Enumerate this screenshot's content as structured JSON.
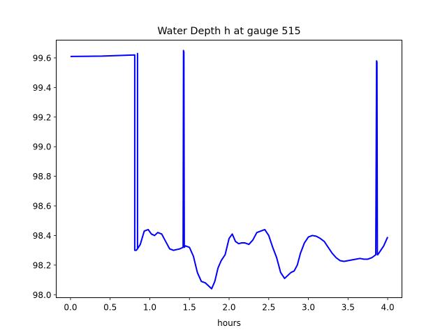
{
  "chart_data": {
    "type": "line",
    "title": "Water Depth h at gauge 515",
    "xlabel": "hours",
    "ylabel": "",
    "xlim": [
      -0.18,
      4.18
    ],
    "ylim": [
      97.98,
      99.72
    ],
    "xticks": [
      0.0,
      0.5,
      1.0,
      1.5,
      2.0,
      2.5,
      3.0,
      3.5,
      4.0
    ],
    "xtick_labels": [
      "0.0",
      "0.5",
      "1.0",
      "1.5",
      "2.0",
      "2.5",
      "3.0",
      "3.5",
      "4.0"
    ],
    "yticks": [
      98.0,
      98.2,
      98.4,
      98.6,
      98.8,
      99.0,
      99.2,
      99.4,
      99.6
    ],
    "ytick_labels": [
      "98.0",
      "98.2",
      "98.4",
      "98.6",
      "98.8",
      "99.0",
      "99.2",
      "99.4",
      "99.6"
    ],
    "grid": false,
    "series": [
      {
        "color": "#0000ff",
        "x": [
          0.0,
          0.4,
          0.81,
          0.81,
          0.83,
          0.845,
          0.845,
          0.845,
          0.88,
          0.93,
          0.98,
          1.02,
          1.06,
          1.1,
          1.15,
          1.2,
          1.25,
          1.3,
          1.34,
          1.38,
          1.42,
          1.425,
          1.43,
          1.435,
          1.45,
          1.5,
          1.55,
          1.6,
          1.65,
          1.7,
          1.74,
          1.78,
          1.82,
          1.86,
          1.9,
          1.95,
          2.0,
          2.04,
          2.08,
          2.12,
          2.16,
          2.2,
          2.25,
          2.3,
          2.35,
          2.4,
          2.45,
          2.5,
          2.55,
          2.6,
          2.65,
          2.7,
          2.74,
          2.78,
          2.82,
          2.86,
          2.9,
          2.95,
          3.0,
          3.05,
          3.1,
          3.15,
          3.2,
          3.25,
          3.3,
          3.35,
          3.4,
          3.45,
          3.5,
          3.55,
          3.6,
          3.65,
          3.7,
          3.75,
          3.8,
          3.85,
          3.86,
          3.865,
          3.87,
          3.875,
          3.9,
          3.95,
          4.0
        ],
        "y": [
          99.61,
          99.612,
          99.62,
          98.3,
          98.3,
          98.31,
          99.63,
          98.31,
          98.34,
          98.43,
          98.44,
          98.41,
          98.4,
          98.42,
          98.41,
          98.36,
          98.31,
          98.3,
          98.305,
          98.31,
          98.32,
          99.65,
          99.64,
          98.32,
          98.33,
          98.32,
          98.26,
          98.15,
          98.09,
          98.08,
          98.06,
          98.04,
          98.09,
          98.18,
          98.23,
          98.27,
          98.38,
          98.41,
          98.36,
          98.345,
          98.35,
          98.35,
          98.34,
          98.37,
          98.42,
          98.43,
          98.44,
          98.4,
          98.32,
          98.25,
          98.15,
          98.11,
          98.13,
          98.15,
          98.16,
          98.2,
          98.28,
          98.35,
          98.39,
          98.4,
          98.395,
          98.38,
          98.36,
          98.32,
          98.28,
          98.25,
          98.23,
          98.225,
          98.23,
          98.235,
          98.24,
          98.245,
          98.24,
          98.24,
          98.25,
          98.27,
          99.58,
          99.57,
          98.27,
          98.27,
          98.29,
          98.33,
          98.39
        ]
      }
    ]
  }
}
